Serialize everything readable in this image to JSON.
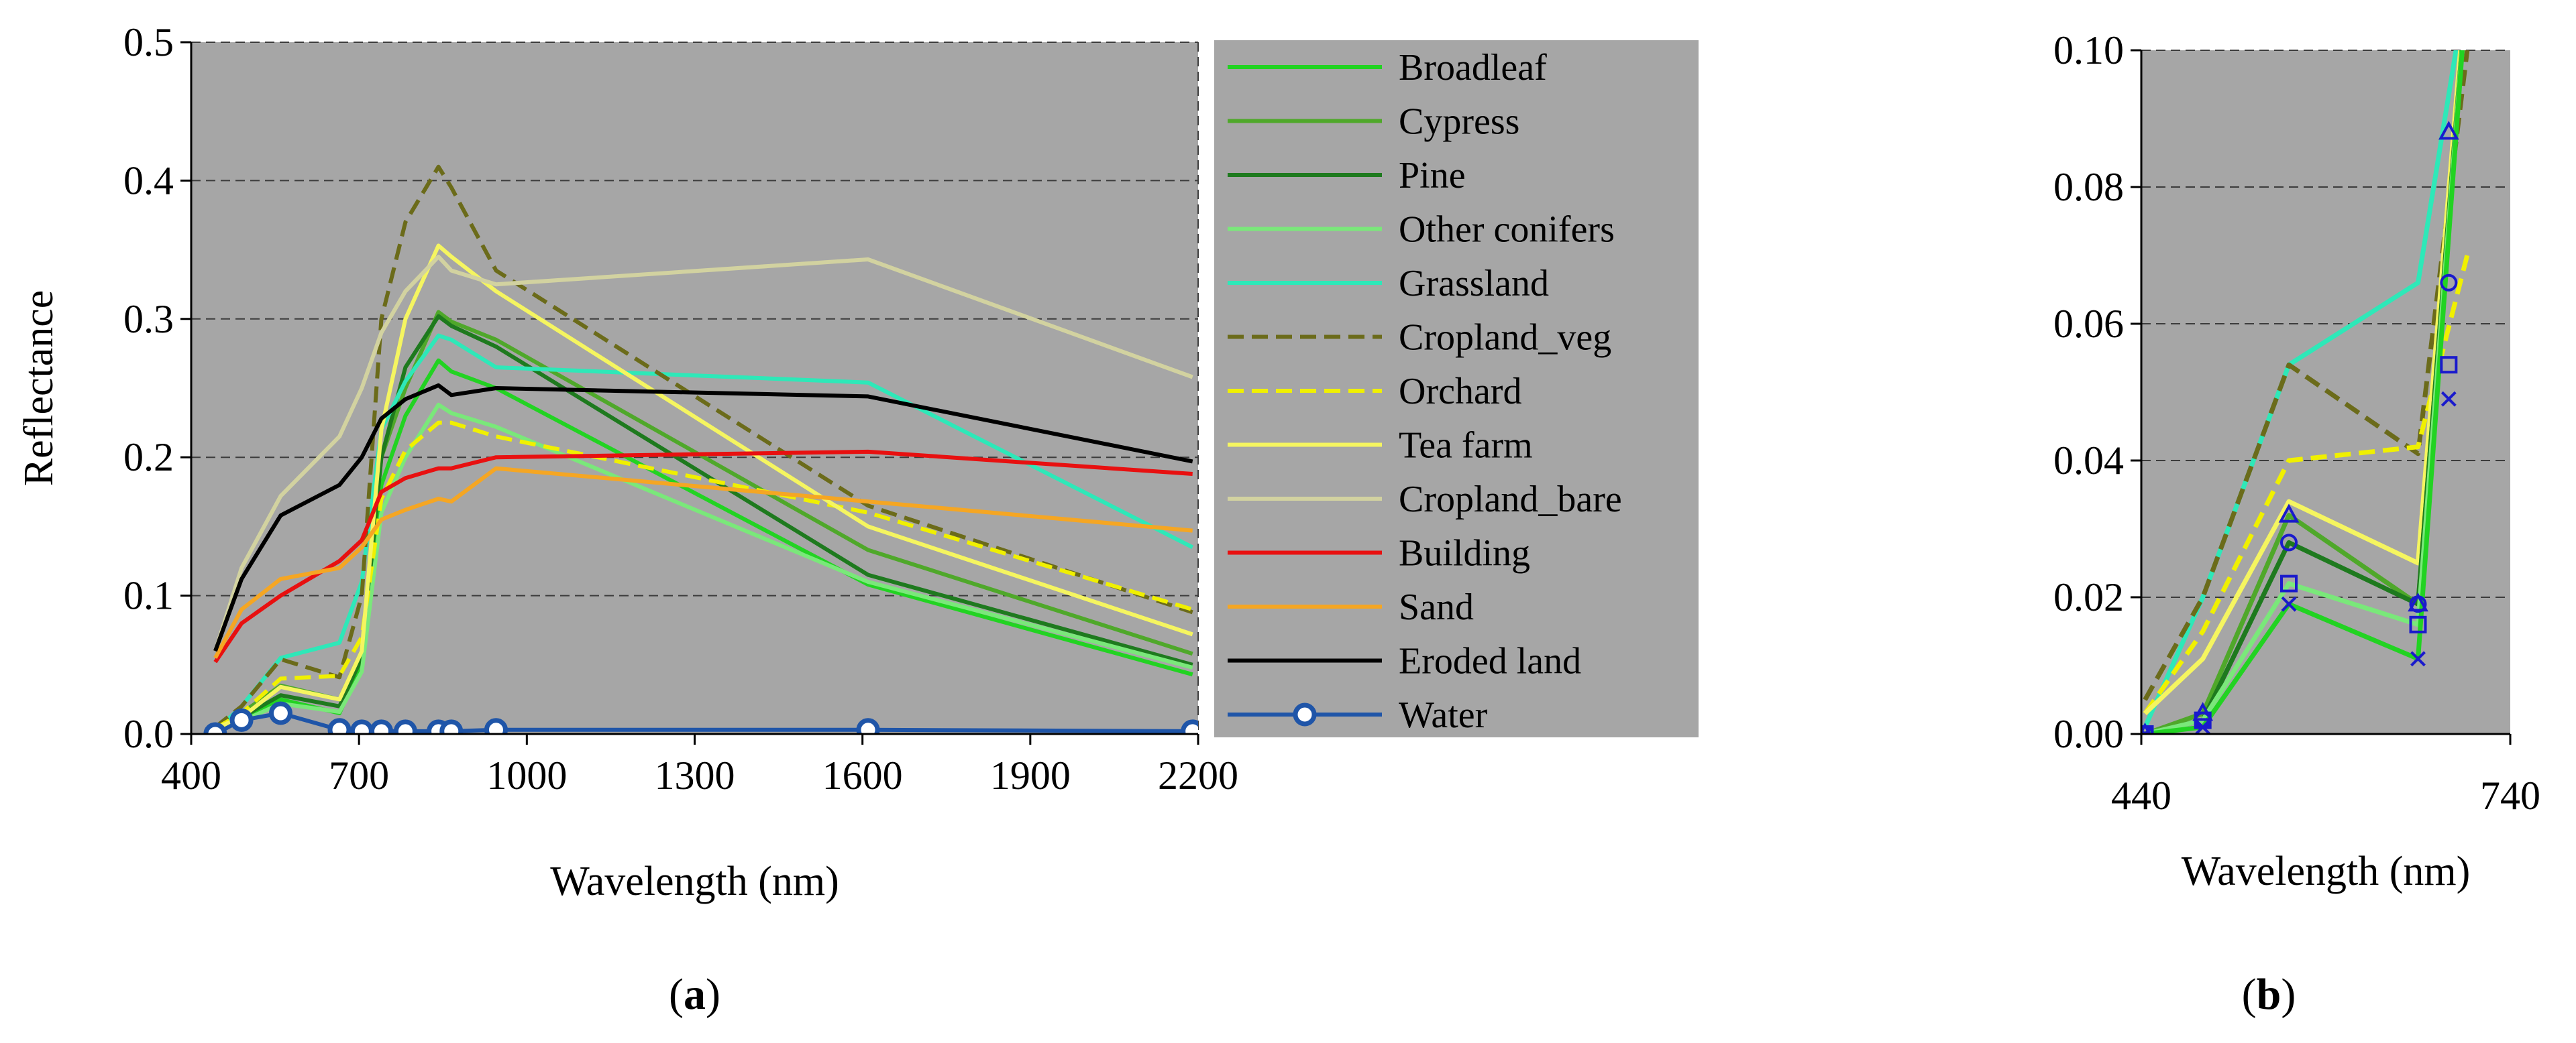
{
  "colors": {
    "plot_bg": "#a6a6a6",
    "legend_bg": "#a6a6a6",
    "grid": "#3c3c3c",
    "water_marker_b": "#1a1acc"
  },
  "chart_data": [
    {
      "id": "a",
      "panel_label": "a",
      "type": "line",
      "xlabel": "Wavelength (nm)",
      "ylabel": "Reflectance",
      "xlim": [
        400,
        2200
      ],
      "ylim": [
        0,
        0.5
      ],
      "xticks": [
        400,
        700,
        1000,
        1300,
        1600,
        1900,
        2200
      ],
      "yticks": [
        0.0,
        0.1,
        0.2,
        0.3,
        0.4,
        0.5
      ],
      "xtick_labels": [
        "400",
        "700",
        "1000",
        "1300",
        "1600",
        "1900",
        "2200"
      ],
      "ytick_labels": [
        "0.0",
        "0.1",
        "0.2",
        "0.3",
        "0.4",
        "0.5"
      ],
      "grid": "horizontal dashed",
      "legend_position": "right",
      "series": [
        {
          "name": "Broadleaf",
          "color": "#22d322",
          "dash": "solid",
          "x": [
            443,
            490,
            560,
            665,
            705,
            740,
            783,
            842,
            865,
            945,
            1610,
            2190
          ],
          "y": [
            0.002,
            0.01,
            0.025,
            0.015,
            0.05,
            0.18,
            0.23,
            0.27,
            0.262,
            0.25,
            0.108,
            0.043
          ]
        },
        {
          "name": "Cypress",
          "color": "#4fa82a",
          "dash": "solid",
          "x": [
            443,
            490,
            560,
            665,
            705,
            740,
            783,
            842,
            865,
            945,
            1610,
            2190
          ],
          "y": [
            0.003,
            0.015,
            0.035,
            0.025,
            0.06,
            0.2,
            0.25,
            0.305,
            0.298,
            0.285,
            0.133,
            0.058
          ]
        },
        {
          "name": "Pine",
          "color": "#1e7a1e",
          "dash": "solid",
          "x": [
            443,
            490,
            560,
            665,
            705,
            740,
            783,
            842,
            865,
            945,
            1610,
            2190
          ],
          "y": [
            0.003,
            0.012,
            0.028,
            0.02,
            0.055,
            0.2,
            0.265,
            0.302,
            0.295,
            0.28,
            0.115,
            0.05
          ]
        },
        {
          "name": "Other conifers",
          "color": "#7ae87a",
          "dash": "solid",
          "x": [
            443,
            490,
            560,
            665,
            705,
            740,
            783,
            842,
            865,
            945,
            1610,
            2190
          ],
          "y": [
            0.002,
            0.009,
            0.022,
            0.016,
            0.045,
            0.16,
            0.2,
            0.238,
            0.232,
            0.222,
            0.11,
            0.048
          ]
        },
        {
          "name": "Grassland",
          "color": "#2ee8b8",
          "dash": "solid",
          "x": [
            443,
            490,
            560,
            665,
            705,
            740,
            783,
            842,
            865,
            945,
            1610,
            2190
          ],
          "y": [
            0.002,
            0.02,
            0.055,
            0.066,
            0.11,
            0.22,
            0.255,
            0.288,
            0.285,
            0.265,
            0.254,
            0.135
          ]
        },
        {
          "name": "Cropland_veg",
          "color": "#6b6b1a",
          "dash": "dashed",
          "x": [
            443,
            490,
            560,
            665,
            705,
            740,
            783,
            842,
            865,
            945,
            1610,
            2190
          ],
          "y": [
            0.005,
            0.02,
            0.054,
            0.041,
            0.1,
            0.3,
            0.37,
            0.41,
            0.395,
            0.335,
            0.165,
            0.088
          ]
        },
        {
          "name": "Orchard",
          "color": "#f0f000",
          "dash": "dashed",
          "x": [
            443,
            490,
            560,
            665,
            705,
            740,
            783,
            842,
            865,
            945,
            1610,
            2190
          ],
          "y": [
            0.004,
            0.015,
            0.04,
            0.042,
            0.07,
            0.17,
            0.205,
            0.225,
            0.225,
            0.215,
            0.16,
            0.09
          ]
        },
        {
          "name": "Tea farm",
          "color": "#f5f560",
          "dash": "solid",
          "x": [
            443,
            490,
            560,
            665,
            705,
            740,
            783,
            842,
            865,
            945,
            1610,
            2190
          ],
          "y": [
            0.004,
            0.012,
            0.034,
            0.025,
            0.06,
            0.22,
            0.3,
            0.353,
            0.345,
            0.32,
            0.15,
            0.072
          ]
        },
        {
          "name": "Cropland_bare",
          "color": "#d2d2a0",
          "dash": "solid",
          "x": [
            443,
            490,
            560,
            665,
            705,
            740,
            783,
            842,
            865,
            945,
            1610,
            2190
          ],
          "y": [
            0.06,
            0.12,
            0.172,
            0.215,
            0.25,
            0.29,
            0.32,
            0.345,
            0.335,
            0.325,
            0.343,
            0.258
          ]
        },
        {
          "name": "Building",
          "color": "#e81010",
          "dash": "solid",
          "x": [
            443,
            490,
            560,
            665,
            705,
            740,
            783,
            842,
            865,
            945,
            1610,
            2190
          ],
          "y": [
            0.052,
            0.08,
            0.1,
            0.125,
            0.14,
            0.175,
            0.185,
            0.192,
            0.192,
            0.2,
            0.204,
            0.188
          ]
        },
        {
          "name": "Sand",
          "color": "#f5a623",
          "dash": "solid",
          "x": [
            443,
            490,
            560,
            665,
            705,
            740,
            783,
            842,
            865,
            945,
            1610,
            2190
          ],
          "y": [
            0.055,
            0.09,
            0.112,
            0.12,
            0.135,
            0.155,
            0.162,
            0.17,
            0.168,
            0.192,
            0.168,
            0.147
          ]
        },
        {
          "name": "Eroded land",
          "color": "#000000",
          "dash": "solid",
          "x": [
            443,
            490,
            560,
            665,
            705,
            740,
            783,
            842,
            865,
            945,
            1610,
            2190
          ],
          "y": [
            0.06,
            0.112,
            0.158,
            0.18,
            0.2,
            0.228,
            0.242,
            0.252,
            0.245,
            0.25,
            0.244,
            0.197
          ]
        },
        {
          "name": "Water",
          "color": "#1f55a8",
          "dash": "solid",
          "marker": "open-circle",
          "x": [
            443,
            490,
            560,
            665,
            705,
            740,
            783,
            842,
            865,
            945,
            1610,
            2190
          ],
          "y": [
            0.0,
            0.01,
            0.015,
            0.003,
            0.002,
            0.002,
            0.002,
            0.002,
            0.002,
            0.003,
            0.003,
            0.002
          ]
        }
      ]
    },
    {
      "id": "b",
      "panel_label": "b",
      "type": "line",
      "xlabel": "Wavelength (nm)",
      "ylabel": "",
      "xlim": [
        440,
        740
      ],
      "ylim": [
        0,
        0.1
      ],
      "xticks": [
        440,
        740
      ],
      "yticks": [
        0.0,
        0.02,
        0.04,
        0.06,
        0.08,
        0.1
      ],
      "xtick_labels": [
        "440",
        "740"
      ],
      "ytick_labels": [
        "0.00",
        "0.02",
        "0.04",
        "0.06",
        "0.08",
        "0.10"
      ],
      "grid": "horizontal dashed",
      "series": [
        {
          "name": "Grassland",
          "color": "#2ee8b8",
          "dash": "solid",
          "x": [
            443,
            490,
            560,
            665,
            705
          ],
          "y": [
            0.001,
            0.02,
            0.054,
            0.066,
            0.11
          ]
        },
        {
          "name": "Cropland_veg",
          "color": "#6b6b1a",
          "dash": "dashed",
          "x": [
            443,
            490,
            560,
            665,
            705
          ],
          "y": [
            0.005,
            0.02,
            0.054,
            0.041,
            0.1
          ]
        },
        {
          "name": "Orchard",
          "color": "#f0f000",
          "dash": "dashed",
          "x": [
            443,
            490,
            560,
            665,
            705
          ],
          "y": [
            0.003,
            0.015,
            0.04,
            0.042,
            0.07
          ]
        },
        {
          "name": "Tea farm",
          "color": "#f5f560",
          "dash": "solid",
          "x": [
            443,
            490,
            560,
            665,
            705
          ],
          "y": [
            0.003,
            0.011,
            0.034,
            0.025,
            0.112
          ]
        },
        {
          "name": "Cypress",
          "color": "#4fa82a",
          "dash": "solid",
          "x": [
            443,
            490,
            560,
            665,
            705
          ],
          "y": [
            0.0,
            0.003,
            0.032,
            0.019,
            0.11
          ]
        },
        {
          "name": "Pine",
          "color": "#1e7a1e",
          "dash": "solid",
          "x": [
            443,
            490,
            560,
            665,
            705
          ],
          "y": [
            0.0,
            0.002,
            0.028,
            0.019,
            0.11
          ]
        },
        {
          "name": "Other conifers",
          "color": "#7ae87a",
          "dash": "solid",
          "x": [
            443,
            490,
            560,
            665,
            705
          ],
          "y": [
            0.0,
            0.002,
            0.022,
            0.016,
            0.11
          ]
        },
        {
          "name": "Broadleaf",
          "color": "#22d322",
          "dash": "solid",
          "x": [
            443,
            490,
            560,
            665,
            705
          ],
          "y": [
            0.0,
            0.001,
            0.019,
            0.011,
            0.11
          ]
        },
        {
          "name": "Cypress",
          "color": "#4fa82a",
          "marker": "triangle",
          "marker_color": "#1a1acc",
          "x": [
            443,
            490,
            560,
            665,
            690
          ],
          "y": [
            0.0,
            0.003,
            0.032,
            0.019,
            0.088
          ]
        },
        {
          "name": "Pine",
          "color": "#1e7a1e",
          "marker": "circle",
          "marker_color": "#1a1acc",
          "x": [
            443,
            490,
            560,
            665,
            690
          ],
          "y": [
            0.0,
            0.002,
            0.028,
            0.019,
            0.066
          ]
        },
        {
          "name": "Other conifers",
          "color": "#7ae87a",
          "marker": "square",
          "marker_color": "#1a1acc",
          "x": [
            443,
            490,
            560,
            665,
            690
          ],
          "y": [
            0.0,
            0.002,
            0.022,
            0.016,
            0.054
          ]
        },
        {
          "name": "Broadleaf",
          "color": "#22d322",
          "marker": "x",
          "marker_color": "#1a1acc",
          "x": [
            443,
            490,
            560,
            665,
            690
          ],
          "y": [
            0.0,
            0.001,
            0.019,
            0.011,
            0.049
          ]
        }
      ]
    }
  ]
}
